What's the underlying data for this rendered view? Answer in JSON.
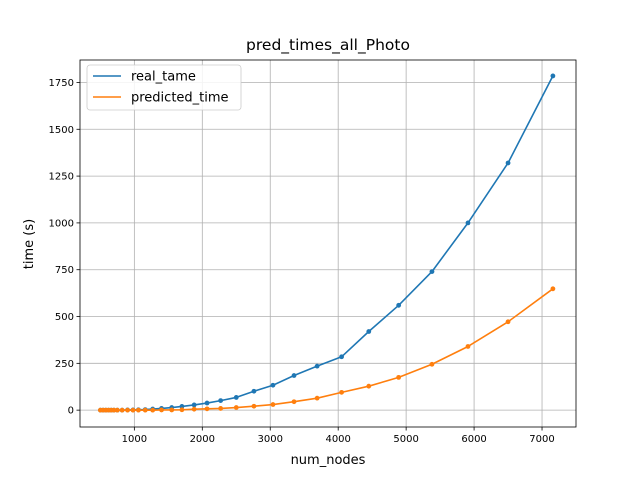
{
  "chart_data": {
    "type": "line",
    "title": "pred_times_all_Photo",
    "xlabel": "num_nodes",
    "ylabel": "time (s)",
    "xlim": [
      200,
      7500
    ],
    "ylim": [
      -90,
      1870
    ],
    "xticks": [
      1000,
      2000,
      3000,
      4000,
      5000,
      6000,
      7000
    ],
    "yticks": [
      0,
      250,
      500,
      750,
      1000,
      1250,
      1500,
      1750
    ],
    "grid": true,
    "legend_position": "upper-left",
    "x": [
      500,
      540,
      580,
      620,
      660,
      700,
      750,
      820,
      900,
      980,
      1060,
      1160,
      1270,
      1400,
      1550,
      1700,
      1880,
      2070,
      2270,
      2500,
      2760,
      3040,
      3350,
      3690,
      4050,
      4450,
      4890,
      5380,
      5910,
      6500,
      7160
    ],
    "series": [
      {
        "name": "real_tame",
        "color": "#1f77b4",
        "values": [
          0,
          0,
          0,
          0,
          0,
          0,
          0,
          0,
          1,
          1,
          2,
          3,
          6,
          9,
          14,
          20,
          28,
          38,
          51,
          68,
          101,
          133,
          185,
          235,
          285,
          420,
          560,
          740,
          1000,
          1320,
          1785
        ]
      },
      {
        "name": "predicted_time",
        "color": "#ff7f0e",
        "values": [
          0,
          0,
          0,
          0,
          0,
          0,
          0,
          0,
          0,
          0,
          0,
          0,
          0,
          1,
          1,
          2,
          5,
          7,
          9,
          14,
          21,
          30,
          45,
          64,
          95,
          128,
          175,
          245,
          340,
          472,
          648
        ]
      }
    ]
  }
}
